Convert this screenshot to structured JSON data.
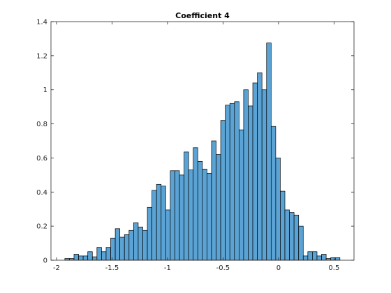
{
  "chart_data": {
    "type": "bar",
    "title": "Coefficient 4",
    "xlabel": "",
    "ylabel": "",
    "xlim": [
      -2.05,
      0.68
    ],
    "ylim": [
      0,
      1.4
    ],
    "xticks": [
      -2,
      -1.5,
      -1,
      -0.5,
      0,
      0.5
    ],
    "xtick_labels": [
      "-2",
      "-1.5",
      "-1",
      "-0.5",
      "0",
      "0.5"
    ],
    "yticks": [
      0,
      0.2,
      0.4,
      0.6,
      0.8,
      1,
      1.2,
      1.4
    ],
    "ytick_labels": [
      "0",
      "0.2",
      "0.4",
      "0.6",
      "0.8",
      "1",
      "1.2",
      "1.4"
    ],
    "bin_start": -1.925,
    "bin_width": 0.0413,
    "values": [
      0.01,
      0.01,
      0.035,
      0.025,
      0.025,
      0.05,
      0.02,
      0.075,
      0.05,
      0.075,
      0.13,
      0.185,
      0.135,
      0.15,
      0.175,
      0.22,
      0.195,
      0.175,
      0.31,
      0.41,
      0.445,
      0.435,
      0.295,
      0.525,
      0.525,
      0.5,
      0.635,
      0.53,
      0.66,
      0.58,
      0.535,
      0.51,
      0.7,
      0.62,
      0.82,
      0.91,
      0.92,
      0.93,
      0.765,
      1.0,
      0.905,
      1.04,
      1.1,
      1.0,
      1.275,
      0.785,
      0.6,
      0.405,
      0.295,
      0.28,
      0.265,
      0.2,
      0.025,
      0.05,
      0.05,
      0.025,
      0.035,
      0.01,
      0.015,
      0.015
    ],
    "bar_color": "#5aa3d4",
    "edge_color": "#000000",
    "grid": false
  }
}
